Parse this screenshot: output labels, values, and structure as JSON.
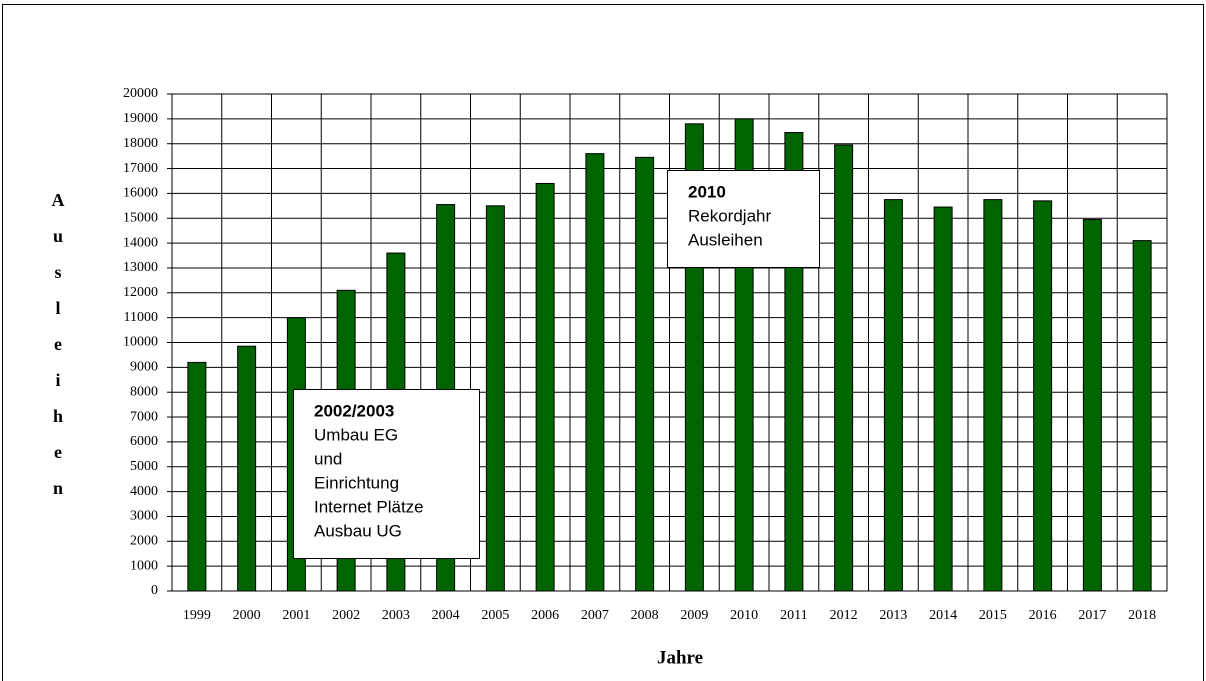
{
  "chart_data": {
    "type": "bar",
    "xlabel": "Jahre",
    "ylabel": "Ausleihen",
    "categories": [
      "1999",
      "2000",
      "2001",
      "2002",
      "2003",
      "2004",
      "2005",
      "2006",
      "2007",
      "2008",
      "2009",
      "2010",
      "2011",
      "2012",
      "2013",
      "2014",
      "2015",
      "2016",
      "2017",
      "2018"
    ],
    "values": [
      9200,
      9850,
      11000,
      12100,
      13600,
      15550,
      15500,
      16400,
      17600,
      17450,
      18800,
      19000,
      18450,
      17950,
      15750,
      15450,
      15750,
      15700,
      14950,
      14100
    ],
    "color": "#006400",
    "ylim": [
      0,
      20000
    ],
    "yticks": [
      0,
      1000,
      2000,
      3000,
      4000,
      5000,
      6000,
      7000,
      8000,
      9000,
      10000,
      11000,
      12000,
      13000,
      14000,
      15000,
      16000,
      17000,
      18000,
      19000,
      20000
    ],
    "grid": true,
    "annotations": [
      {
        "title": "2002/2003",
        "lines": [
          "Umbau EG",
          "und",
          "Einrichtung",
          "Internet Plätze",
          "Ausbau UG"
        ]
      },
      {
        "title": "2010",
        "lines": [
          "Rekordjahr",
          "Ausleihen"
        ]
      }
    ]
  }
}
